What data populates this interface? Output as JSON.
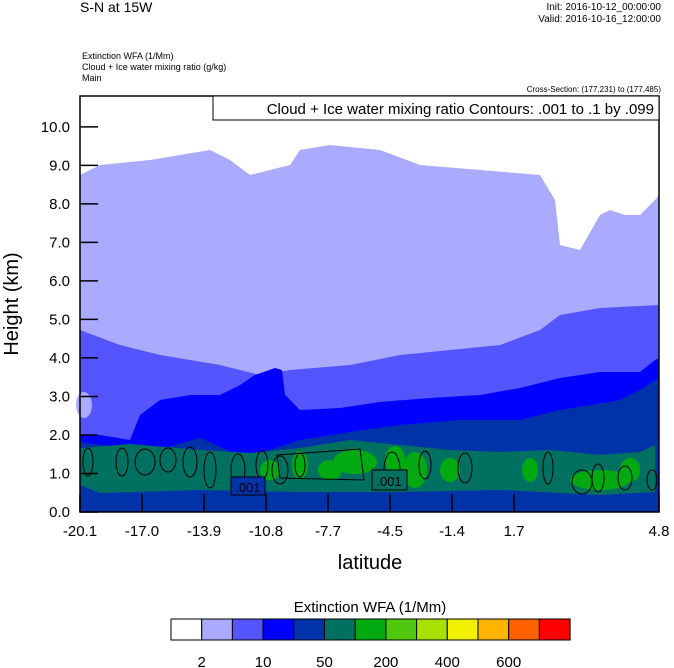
{
  "header": {
    "title": "S-N at 15W",
    "init": "Init: 2016-10-12_00:00:00",
    "valid": "Valid: 2016-10-16_12:00:00",
    "field1": "Extinction WFA   (1/Mm)",
    "field2": "Cloud + Ice water mixing ratio   (g/kg)",
    "field3": "Main",
    "cross_section": "Cross-Section: (177,231) to (177,485)"
  },
  "chart_data": {
    "type": "contour",
    "contour_title": "Cloud + Ice water mixing ratio Contours: .001 to .1 by .099",
    "xlabel": "latitude",
    "ylabel": "Height (km)",
    "xlim": [
      -20.1,
      4.8
    ],
    "ylim": [
      0,
      10.8
    ],
    "xticks": [
      "-20.1",
      "-17.0",
      "-13.9",
      "-10.8",
      "-7.7",
      "-4.5",
      "-1.4",
      "1.7",
      "4.8"
    ],
    "yticks": [
      "0.0",
      "1.0",
      "2.0",
      "3.0",
      "4.0",
      "5.0",
      "6.0",
      "7.0",
      "8.0",
      "9.0",
      "10.0"
    ],
    "contour_labels": [
      ".001",
      ".001"
    ],
    "colorbar": {
      "title": "Extinction WFA  (1/Mm)",
      "colors": [
        "#ffffff",
        "#aaaaff",
        "#5555ff",
        "#0000ff",
        "#0033aa",
        "#007060",
        "#00aa10",
        "#50c810",
        "#a8e000",
        "#f0f000",
        "#ffb400",
        "#ff6000",
        "#ff0000"
      ],
      "labels": [
        "2",
        "10",
        "50",
        "200",
        "400",
        "600"
      ]
    }
  }
}
